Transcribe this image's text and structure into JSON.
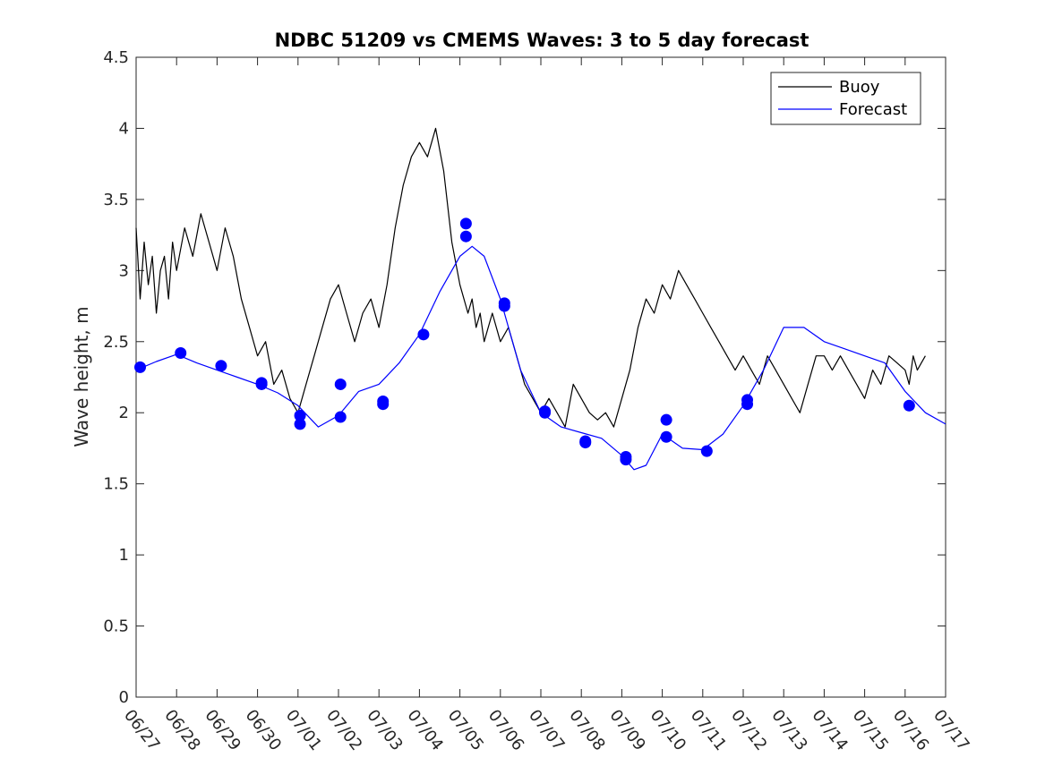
{
  "chart_data": {
    "type": "line",
    "title": "NDBC 51209 vs CMEMS Waves: 3 to 5 day forecast",
    "ylabel": "Wave height, m",
    "xlabel": "",
    "xlim": [
      0,
      20
    ],
    "ylim": [
      0,
      4.5
    ],
    "x_ticks": [
      0,
      1,
      2,
      3,
      4,
      5,
      6,
      7,
      8,
      9,
      10,
      11,
      12,
      13,
      14,
      15,
      16,
      17,
      18,
      19,
      20
    ],
    "x_tick_labels": [
      "06/27",
      "06/28",
      "06/29",
      "06/30",
      "07/01",
      "07/02",
      "07/03",
      "07/04",
      "07/05",
      "07/06",
      "07/07",
      "07/08",
      "07/09",
      "07/10",
      "07/11",
      "07/12",
      "07/13",
      "07/14",
      "07/15",
      "07/16",
      "07/17"
    ],
    "y_ticks": [
      0,
      0.5,
      1,
      1.5,
      2,
      2.5,
      3,
      3.5,
      4,
      4.5
    ],
    "y_tick_labels": [
      "0",
      "0.5",
      "1",
      "1.5",
      "2",
      "2.5",
      "3",
      "3.5",
      "4",
      "4.5"
    ],
    "legend": {
      "position": "top-right",
      "entries": [
        {
          "label": "Buoy",
          "color": "#000000"
        },
        {
          "label": "Forecast",
          "color": "#0000ff"
        }
      ]
    },
    "series": [
      {
        "name": "Buoy",
        "color": "#000000",
        "x": [
          0,
          0.1,
          0.2,
          0.3,
          0.4,
          0.5,
          0.6,
          0.7,
          0.8,
          0.9,
          1.0,
          1.2,
          1.4,
          1.6,
          1.8,
          2.0,
          2.2,
          2.4,
          2.6,
          2.8,
          3.0,
          3.2,
          3.4,
          3.6,
          3.8,
          4.0,
          4.2,
          4.4,
          4.6,
          4.8,
          5.0,
          5.2,
          5.4,
          5.6,
          5.8,
          6.0,
          6.2,
          6.4,
          6.6,
          6.8,
          7.0,
          7.2,
          7.4,
          7.6,
          7.8,
          8.0,
          8.1,
          8.2,
          8.3,
          8.4,
          8.5,
          8.6,
          8.7,
          8.8,
          8.9,
          9.0,
          9.2,
          9.4,
          9.6,
          9.8,
          10.0,
          10.2,
          10.4,
          10.6,
          10.8,
          11.0,
          11.2,
          11.4,
          11.6,
          11.8,
          12.0,
          12.2,
          12.4,
          12.6,
          12.8,
          13.0,
          13.2,
          13.4,
          13.6,
          13.8,
          14.0,
          14.2,
          14.4,
          14.6,
          14.8,
          15.0,
          15.2,
          15.4,
          15.6,
          15.8,
          16.0,
          16.2,
          16.4,
          16.6,
          16.8,
          17.0,
          17.2,
          17.4,
          17.6,
          17.8,
          18.0,
          18.2,
          18.4,
          18.6,
          18.8,
          19.0,
          19.1,
          19.2,
          19.3,
          19.4,
          19.5
        ],
        "y": [
          3.3,
          2.8,
          3.2,
          2.9,
          3.1,
          2.7,
          3.0,
          3.1,
          2.8,
          3.2,
          3.0,
          3.3,
          3.1,
          3.4,
          3.2,
          3.0,
          3.3,
          3.1,
          2.8,
          2.6,
          2.4,
          2.5,
          2.2,
          2.3,
          2.1,
          2.0,
          2.2,
          2.4,
          2.6,
          2.8,
          2.9,
          2.7,
          2.5,
          2.7,
          2.8,
          2.6,
          2.9,
          3.3,
          3.6,
          3.8,
          3.9,
          3.8,
          4.0,
          3.7,
          3.2,
          2.9,
          2.8,
          2.7,
          2.8,
          2.6,
          2.7,
          2.5,
          2.6,
          2.7,
          2.6,
          2.5,
          2.6,
          2.4,
          2.2,
          2.1,
          2.0,
          2.1,
          2.0,
          1.9,
          2.2,
          2.1,
          2.0,
          1.95,
          2.0,
          1.9,
          2.1,
          2.3,
          2.6,
          2.8,
          2.7,
          2.9,
          2.8,
          3.0,
          2.9,
          2.8,
          2.7,
          2.6,
          2.5,
          2.4,
          2.3,
          2.4,
          2.3,
          2.2,
          2.4,
          2.3,
          2.2,
          2.1,
          2.0,
          2.2,
          2.4,
          2.4,
          2.3,
          2.4,
          2.3,
          2.2,
          2.1,
          2.3,
          2.2,
          2.4,
          2.35,
          2.3,
          2.2,
          2.4,
          2.3,
          2.35,
          2.4
        ]
      },
      {
        "name": "Forecast",
        "color": "#0000ff",
        "x": [
          0,
          0.5,
          1,
          1.5,
          2,
          2.5,
          3,
          3.5,
          4,
          4.5,
          5,
          5.5,
          6,
          6.5,
          7,
          7.5,
          8,
          8.3,
          8.6,
          9,
          9.5,
          10,
          10.5,
          11,
          11.5,
          12,
          12.3,
          12.6,
          13,
          13.5,
          14,
          14.5,
          15,
          15.5,
          16,
          16.5,
          17,
          17.5,
          18,
          18.5,
          19,
          19.5,
          20
        ],
        "y": [
          2.3,
          2.36,
          2.41,
          2.35,
          2.3,
          2.25,
          2.2,
          2.14,
          2.05,
          1.9,
          1.98,
          2.15,
          2.2,
          2.35,
          2.55,
          2.85,
          3.1,
          3.17,
          3.1,
          2.8,
          2.3,
          2.0,
          1.9,
          1.86,
          1.82,
          1.7,
          1.6,
          1.63,
          1.85,
          1.75,
          1.74,
          1.85,
          2.05,
          2.3,
          2.6,
          2.6,
          2.5,
          2.45,
          2.4,
          2.35,
          2.15,
          2.0,
          1.92
        ]
      }
    ],
    "forecast_markers": {
      "x": [
        0.1,
        1.1,
        2.1,
        3.1,
        3.1,
        4.05,
        4.05,
        5.05,
        5.05,
        6.1,
        6.1,
        7.1,
        8.15,
        8.15,
        9.1,
        9.1,
        10.1,
        10.1,
        11.1,
        11.1,
        12.1,
        12.1,
        13.1,
        13.1,
        14.1,
        15.1,
        15.1,
        19.1
      ],
      "y": [
        2.32,
        2.42,
        2.33,
        2.21,
        2.2,
        1.98,
        1.92,
        1.97,
        2.2,
        2.06,
        2.08,
        2.55,
        3.24,
        3.33,
        2.77,
        2.75,
        2.01,
        2.0,
        1.8,
        1.79,
        1.69,
        1.67,
        1.95,
        1.83,
        1.73,
        2.09,
        2.06,
        2.05
      ]
    }
  }
}
